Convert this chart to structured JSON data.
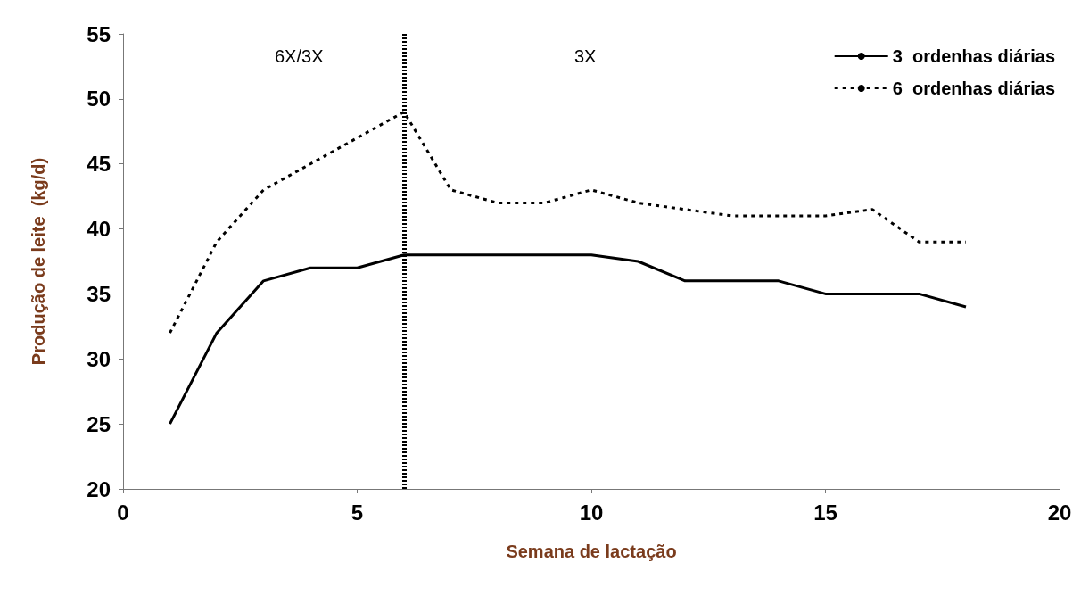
{
  "chart_data": {
    "type": "line",
    "xlabel": "Semana de lactação",
    "ylabel": "Produção de leite  (kg/d)",
    "x": [
      1,
      2,
      3,
      4,
      5,
      6,
      7,
      8,
      9,
      10,
      11,
      12,
      13,
      14,
      15,
      16,
      17,
      18
    ],
    "series": [
      {
        "name": "3  ordenhas diárias",
        "color": "#000000",
        "line_style": "solid",
        "values": [
          25,
          32,
          36,
          37,
          37,
          38,
          38,
          38,
          38,
          38,
          37.5,
          36,
          36,
          36,
          35,
          35,
          35,
          34
        ]
      },
      {
        "name": "6  ordenhas diárias",
        "color": "#000000",
        "line_style": "dashed",
        "values": [
          32,
          39,
          43,
          45,
          47,
          49,
          43,
          42,
          42,
          43,
          42,
          41.5,
          41,
          41,
          41,
          41.5,
          39,
          39
        ]
      }
    ],
    "xlim": [
      0,
      20
    ],
    "xticks": [
      0,
      5,
      10,
      15,
      20
    ],
    "ylim": [
      20,
      55
    ],
    "yticks": [
      20,
      25,
      30,
      35,
      40,
      45,
      50,
      55
    ],
    "ref_lines": [
      {
        "axis": "x",
        "value": 6,
        "color": "#000000",
        "line_style": "dotted"
      }
    ],
    "annotations": [
      "6X/3X",
      "3X"
    ],
    "grid": false,
    "legend": "top right",
    "marker": "none"
  }
}
